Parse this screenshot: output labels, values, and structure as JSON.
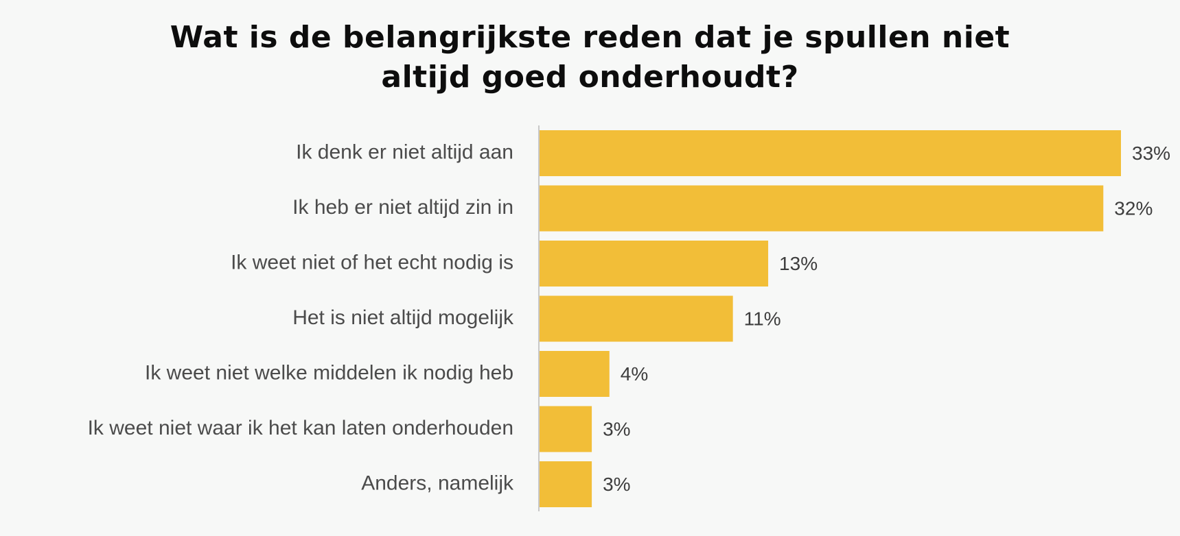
{
  "title_line1": "Wat is de belangrijkste reden dat je spullen niet",
  "title_line2": "altijd goed onderhoudt?",
  "colors": {
    "bar": "#f2be38",
    "axis": "#c8c8c8",
    "background": "#f7f8f7"
  },
  "chart_data": {
    "type": "bar",
    "orientation": "horizontal",
    "title": "Wat is de belangrijkste reden dat je spullen niet altijd goed onderhoudt?",
    "xlabel": "",
    "ylabel": "",
    "grid": false,
    "legend": "none",
    "xlim": [
      0,
      33
    ],
    "categories": [
      "Ik denk er niet altijd aan",
      "Ik heb er niet altijd zin in",
      "Ik weet niet of het echt nodig is",
      "Het is niet altijd mogelijk",
      "Ik weet niet welke middelen ik nodig heb",
      "Ik weet niet waar ik het kan laten onderhouden",
      "Anders, namelijk"
    ],
    "values": [
      33,
      32,
      13,
      11,
      4,
      3,
      3
    ],
    "value_labels": [
      "33%",
      "32%",
      "13%",
      "11%",
      "4%",
      "3%",
      "3%"
    ]
  }
}
